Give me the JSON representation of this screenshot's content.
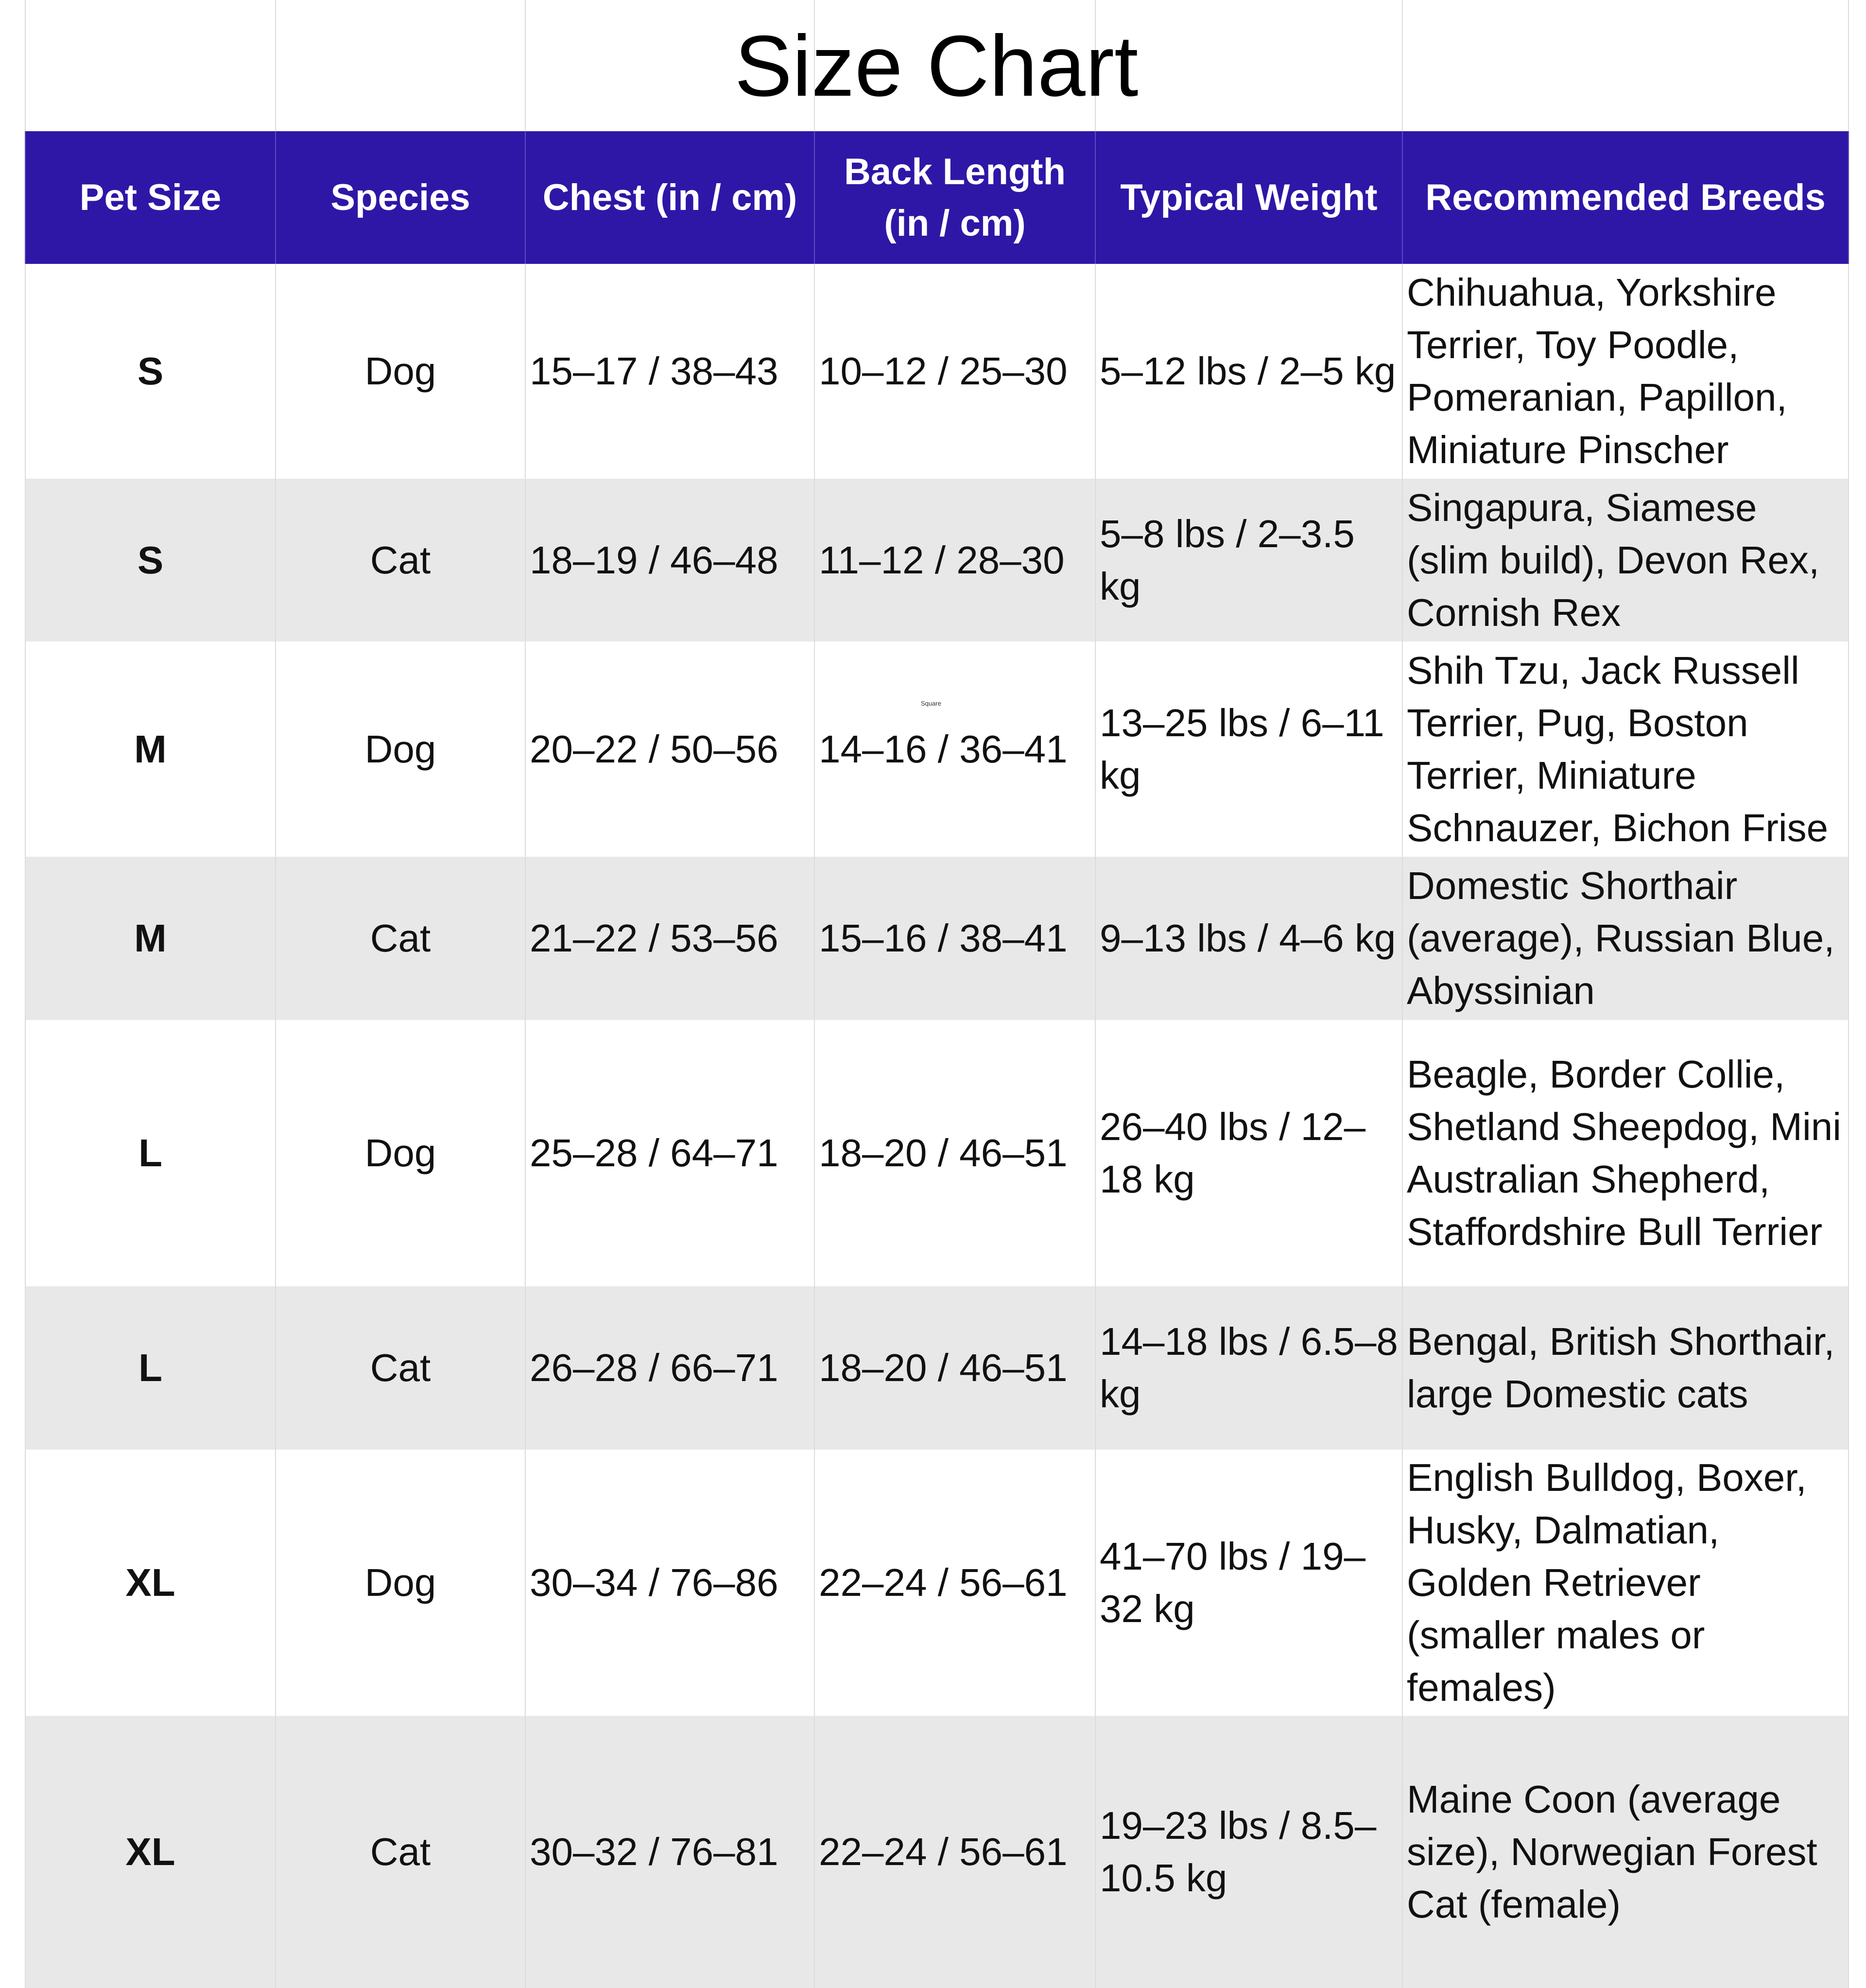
{
  "title": "Size Chart",
  "colors": {
    "header_bg": "#2e17a6",
    "header_text": "#ffffff",
    "alt_row": "#e8e8e8"
  },
  "stray_label": "Square",
  "columns": [
    "Pet Size",
    "Species",
    "Chest (in / cm)",
    "Back Length (in / cm)",
    "Typical Weight",
    "Recommended Breeds"
  ],
  "rows": [
    {
      "size": "S",
      "species": "Dog",
      "chest": "15–17 / 38–43",
      "back": "10–12 / 25–30",
      "weight": "5–12 lbs / 2–5 kg",
      "breeds": "Chihuahua, Yorkshire Terrier, Toy Poodle, Pomeranian, Papillon, Miniature Pinscher"
    },
    {
      "size": "S",
      "species": "Cat",
      "chest": "18–19 / 46–48",
      "back": "11–12 / 28–30",
      "weight": "5–8 lbs / 2–3.5 kg",
      "breeds": "Singapura, Siamese (slim build), Devon Rex, Cornish Rex"
    },
    {
      "size": "M",
      "species": "Dog",
      "chest": "20–22 / 50–56",
      "back": "14–16 / 36–41",
      "weight": "13–25 lbs / 6–11 kg",
      "breeds": "Shih Tzu, Jack Russell Terrier, Pug, Boston Terrier, Miniature Schnauzer, Bichon Frise"
    },
    {
      "size": "M",
      "species": "Cat",
      "chest": "21–22 / 53–56",
      "back": "15–16 / 38–41",
      "weight": "9–13 lbs / 4–6 kg",
      "breeds": "Domestic Shorthair (average), Russian Blue, Abyssinian"
    },
    {
      "size": "L",
      "species": "Dog",
      "chest": "25–28 / 64–71",
      "back": "18–20 / 46–51",
      "weight": "26–40 lbs / 12–18 kg",
      "breeds": "Beagle, Border Collie, Shetland Sheepdog, Mini Australian Shepherd, Staffordshire Bull Terrier"
    },
    {
      "size": "L",
      "species": "Cat",
      "chest": "26–28 / 66–71",
      "back": "18–20 / 46–51",
      "weight": "14–18 lbs / 6.5–8 kg",
      "breeds": "Bengal, British Shorthair, large Domestic cats"
    },
    {
      "size": "XL",
      "species": "Dog",
      "chest": "30–34 / 76–86",
      "back": "22–24 / 56–61",
      "weight": "41–70 lbs / 19–32 kg",
      "breeds": "English Bulldog, Boxer, Husky, Dalmatian, Golden Retriever (smaller males or females)"
    },
    {
      "size": "XL",
      "species": "Cat",
      "chest": "30–32 / 76–81",
      "back": "22–24 / 56–61",
      "weight": "19–23 lbs / 8.5–10.5 kg",
      "breeds": "Maine Coon (average size), Norwegian Forest Cat (female)"
    }
  ]
}
